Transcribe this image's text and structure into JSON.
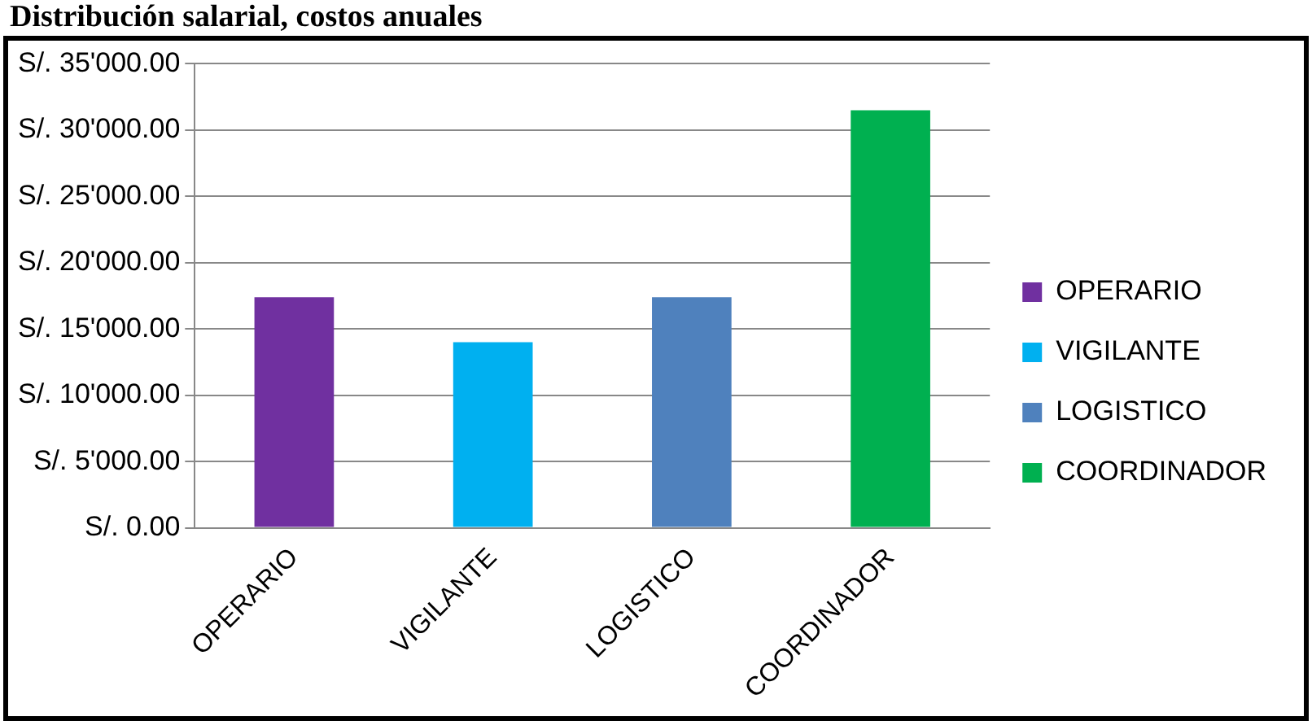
{
  "chart_data": {
    "type": "bar",
    "title": "Distribución salarial, costos anuales",
    "categories": [
      "OPERARIO",
      "VIGILANTE",
      "LOGISTICO",
      "COORDINADOR"
    ],
    "series": [
      {
        "name": "OPERARIO",
        "color": "#7030a0",
        "values": [
          17400,
          null,
          null,
          null
        ]
      },
      {
        "name": "VIGILANTE",
        "color": "#00b0f0",
        "values": [
          null,
          14000,
          null,
          null
        ]
      },
      {
        "name": "LOGISTICO",
        "color": "#4f81bd",
        "values": [
          null,
          null,
          17400,
          null
        ]
      },
      {
        "name": "COORDINADOR",
        "color": "#00b050",
        "values": [
          null,
          null,
          null,
          31500
        ]
      }
    ],
    "ylim": [
      0,
      35000
    ],
    "yticks": [
      {
        "value": 0,
        "label": "S/. 0.00"
      },
      {
        "value": 5000,
        "label": "S/. 5'000.00"
      },
      {
        "value": 10000,
        "label": "S/. 10'000.00"
      },
      {
        "value": 15000,
        "label": "S/. 15'000.00"
      },
      {
        "value": 20000,
        "label": "S/. 20'000.00"
      },
      {
        "value": 25000,
        "label": "S/. 25'000.00"
      },
      {
        "value": 30000,
        "label": "S/. 30'000.00"
      },
      {
        "value": 35000,
        "label": "S/. 35'000.00"
      }
    ],
    "grid": "y",
    "legend": "right"
  }
}
